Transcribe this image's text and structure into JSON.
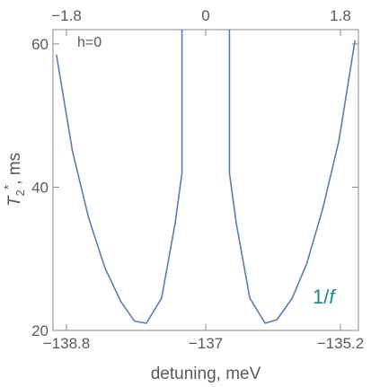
{
  "chart_data": {
    "type": "line",
    "title": "",
    "xlabel": "detuning, meV",
    "ylabel_main": "T",
    "ylabel_sub": "2",
    "ylabel_sup": "*",
    "ylabel_rest": ", ms",
    "xlim": [
      -138.8,
      -135.2
    ],
    "ylim": [
      20,
      62
    ],
    "x_ticks": [
      {
        "value": -138.8,
        "label": "−138.8"
      },
      {
        "value": -137,
        "label": "−137"
      },
      {
        "value": -135.2,
        "label": "−135.2"
      }
    ],
    "x_top_ticks": [
      {
        "value": -138.8,
        "label": "−1.8"
      },
      {
        "value": -137,
        "label": "0"
      },
      {
        "value": -135.2,
        "label": "1.8"
      }
    ],
    "y_ticks": [
      {
        "value": 20,
        "label": "20"
      },
      {
        "value": 40,
        "label": "40"
      },
      {
        "value": 60,
        "label": "60"
      }
    ],
    "annotations": [
      {
        "text": "h=0",
        "color": "#b8875a"
      },
      {
        "text": "1/",
        "italic_part": "f",
        "color": "#1a8a8a"
      }
    ],
    "series": [
      {
        "color": "#5b7db1",
        "x": [
          -138.76,
          -138.57,
          -138.38,
          -138.19,
          -138.0,
          -137.84,
          -137.7,
          -137.52,
          -137.36,
          -137.28,
          -137.28
        ],
        "y": [
          58.5,
          45.0,
          35.7,
          28.8,
          24.0,
          21.3,
          21.0,
          24.5,
          35.0,
          42.0,
          62.0
        ]
      },
      {
        "color": "#5b7db1",
        "x": [
          -136.72,
          -136.72,
          -136.64,
          -136.48,
          -136.3,
          -136.16,
          -135.98,
          -135.81,
          -135.62,
          -135.43,
          -135.24
        ],
        "y": [
          62.0,
          42.0,
          35.0,
          24.5,
          21.0,
          21.5,
          24.5,
          29.3,
          37.0,
          46.5,
          60.5
        ]
      }
    ]
  }
}
